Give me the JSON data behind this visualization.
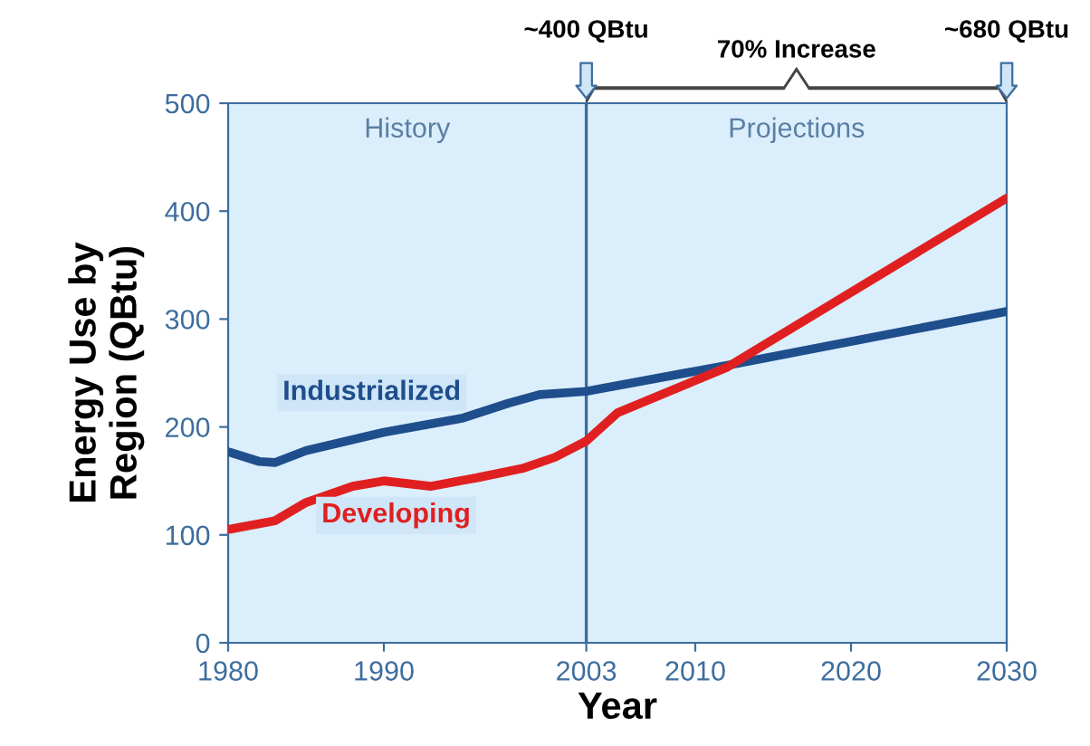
{
  "chart_data": {
    "type": "line",
    "xlabel": "Year",
    "ylabel": "Energy Use by\nRegion (QBtu)",
    "xlim": [
      1980,
      2030
    ],
    "xticks": [
      1980,
      1990,
      2003,
      2010,
      2020,
      2030
    ],
    "ylim": [
      0,
      500
    ],
    "yticks": [
      0,
      100,
      200,
      300,
      400,
      500
    ],
    "grid": false,
    "legend": false,
    "marker": "none",
    "line_style": "solid",
    "series": [
      {
        "name": "Industrialized",
        "color": "#1f4e8c",
        "x": [
          1980,
          1982,
          1983,
          1985,
          1990,
          1995,
          1998,
          2000,
          2003,
          2012,
          2030
        ],
        "values": [
          177,
          168,
          167,
          178,
          195,
          208,
          222,
          230,
          233,
          257,
          307
        ]
      },
      {
        "name": "Developing",
        "color": "#e02020",
        "x": [
          1980,
          1983,
          1985,
          1988,
          1990,
          1993,
          1996,
          1999,
          2001,
          2003,
          2005,
          2012,
          2030
        ],
        "values": [
          105,
          113,
          130,
          145,
          150,
          145,
          153,
          162,
          172,
          187,
          213,
          255,
          412
        ]
      }
    ],
    "bands": [
      {
        "axis": "x",
        "from": 1980,
        "to": 2003,
        "label": "History",
        "color": "#dbeefb"
      },
      {
        "axis": "x",
        "from": 2003,
        "to": 2030,
        "label": "Projections",
        "color": "#dbeefb"
      }
    ],
    "ref_lines": [
      {
        "axis": "x",
        "value": 2003,
        "color": "#3d6d9e",
        "line_style": "solid"
      }
    ],
    "annotations": [
      {
        "text": "~400 QBtu",
        "x": 2003,
        "y": 500
      },
      {
        "text": "70% Increase"
      },
      {
        "text": "~680 QBtu",
        "x": 2030,
        "y": 500
      }
    ]
  }
}
